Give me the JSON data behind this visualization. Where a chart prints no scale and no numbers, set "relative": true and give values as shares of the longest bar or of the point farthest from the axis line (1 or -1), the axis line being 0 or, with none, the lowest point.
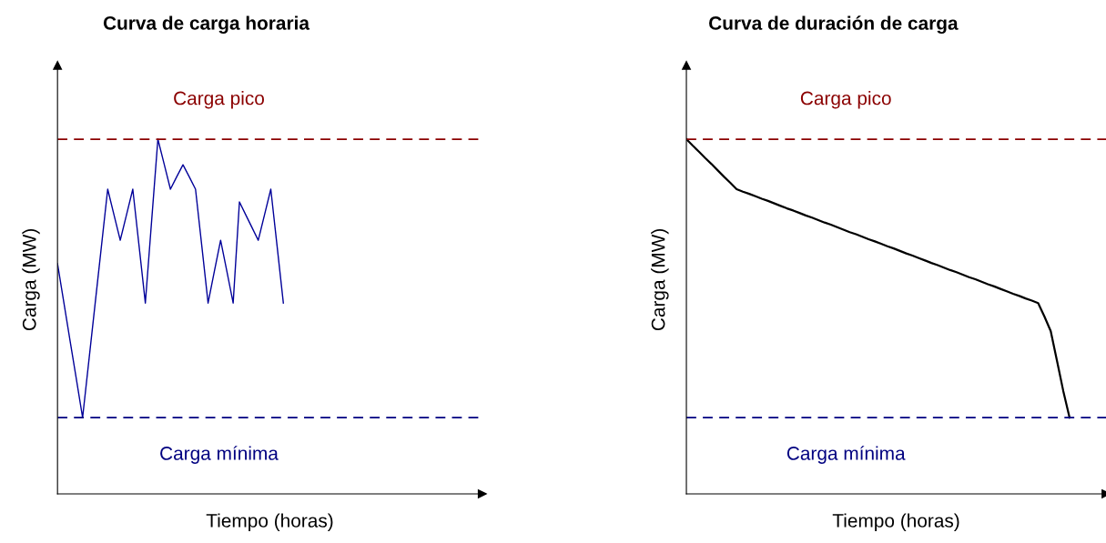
{
  "chart_data": [
    {
      "type": "line",
      "title": "Curva de carga horaria",
      "xlabel": "Tiempo (horas)",
      "ylabel": "Carga (MW)",
      "relative": true,
      "legend": false,
      "marker": "none",
      "line_style": "solid",
      "categories": [
        null,
        null,
        null,
        null,
        null,
        null,
        null,
        null,
        null,
        null,
        null,
        null,
        null,
        null,
        null,
        null,
        null,
        null,
        null,
        null,
        null,
        null,
        null,
        null,
        null,
        null,
        null,
        null,
        null,
        null,
        null,
        null,
        null,
        null,
        null,
        null,
        null
      ],
      "series": [
        {
          "color": "#000099",
          "values": [
            0.649,
            0.541,
            0.432,
            0.324,
            0.215,
            0.376,
            0.537,
            0.698,
            0.859,
            0.787,
            0.715,
            0.787,
            0.859,
            0.699,
            0.538,
            0.769,
            1,
            0.93,
            0.859,
            0.894,
            0.928,
            0.894,
            0.859,
            0.699,
            0.538,
            0.627,
            0.715,
            0.627,
            0.538,
            0.823,
            0.787,
            0.751,
            0.715,
            0.787,
            0.859,
            0.699,
            0.538
          ]
        }
      ],
      "ref_lines": [
        {
          "axis": "y",
          "value": 1,
          "label": "Carga pico",
          "color": "#8b0000",
          "line_style": "dashed"
        },
        {
          "axis": "y",
          "value": 0.215,
          "label": "Carga mínima",
          "color": "#000080",
          "line_style": "dashed"
        }
      ]
    },
    {
      "type": "line",
      "title": "Curva de duración de carga",
      "xlabel": "Tiempo (horas)",
      "ylabel": "Carga (MW)",
      "relative": true,
      "legend": false,
      "marker": "none",
      "line_style": "solid",
      "categories": [
        null,
        null,
        null,
        null,
        null,
        null,
        null,
        null,
        null,
        null,
        null,
        null,
        null,
        null,
        null,
        null,
        null,
        null,
        null,
        null,
        null,
        null,
        null,
        null,
        null,
        null,
        null,
        null,
        null,
        null,
        null,
        null,
        null,
        null,
        null,
        null,
        null,
        null,
        null,
        null,
        null,
        null,
        null,
        null,
        null,
        null,
        null,
        null,
        null,
        null,
        null,
        null,
        null,
        null,
        null,
        null,
        null,
        null,
        null,
        null,
        null,
        null
      ],
      "series": [
        {
          "color": "#000000",
          "values": [
            1,
            0.982,
            0.965,
            0.947,
            0.93,
            0.912,
            0.894,
            0.877,
            0.859,
            0.852,
            0.846,
            0.839,
            0.832,
            0.826,
            0.819,
            0.812,
            0.805,
            0.799,
            0.792,
            0.785,
            0.779,
            0.772,
            0.765,
            0.759,
            0.752,
            0.745,
            0.738,
            0.732,
            0.725,
            0.718,
            0.712,
            0.705,
            0.698,
            0.692,
            0.685,
            0.678,
            0.672,
            0.665,
            0.658,
            0.651,
            0.645,
            0.638,
            0.631,
            0.625,
            0.618,
            0.611,
            0.605,
            0.598,
            0.591,
            0.585,
            0.578,
            0.571,
            0.564,
            0.558,
            0.551,
            0.545,
            0.538,
            0.5,
            0.459,
            0.375,
            0.29,
            0.215
          ]
        }
      ],
      "ref_lines": [
        {
          "axis": "y",
          "value": 1,
          "label": "Carga pico",
          "color": "#8b0000",
          "line_style": "dashed"
        },
        {
          "axis": "y",
          "value": 0.215,
          "label": "Carga mínima",
          "color": "#000080",
          "line_style": "dashed"
        }
      ]
    }
  ]
}
